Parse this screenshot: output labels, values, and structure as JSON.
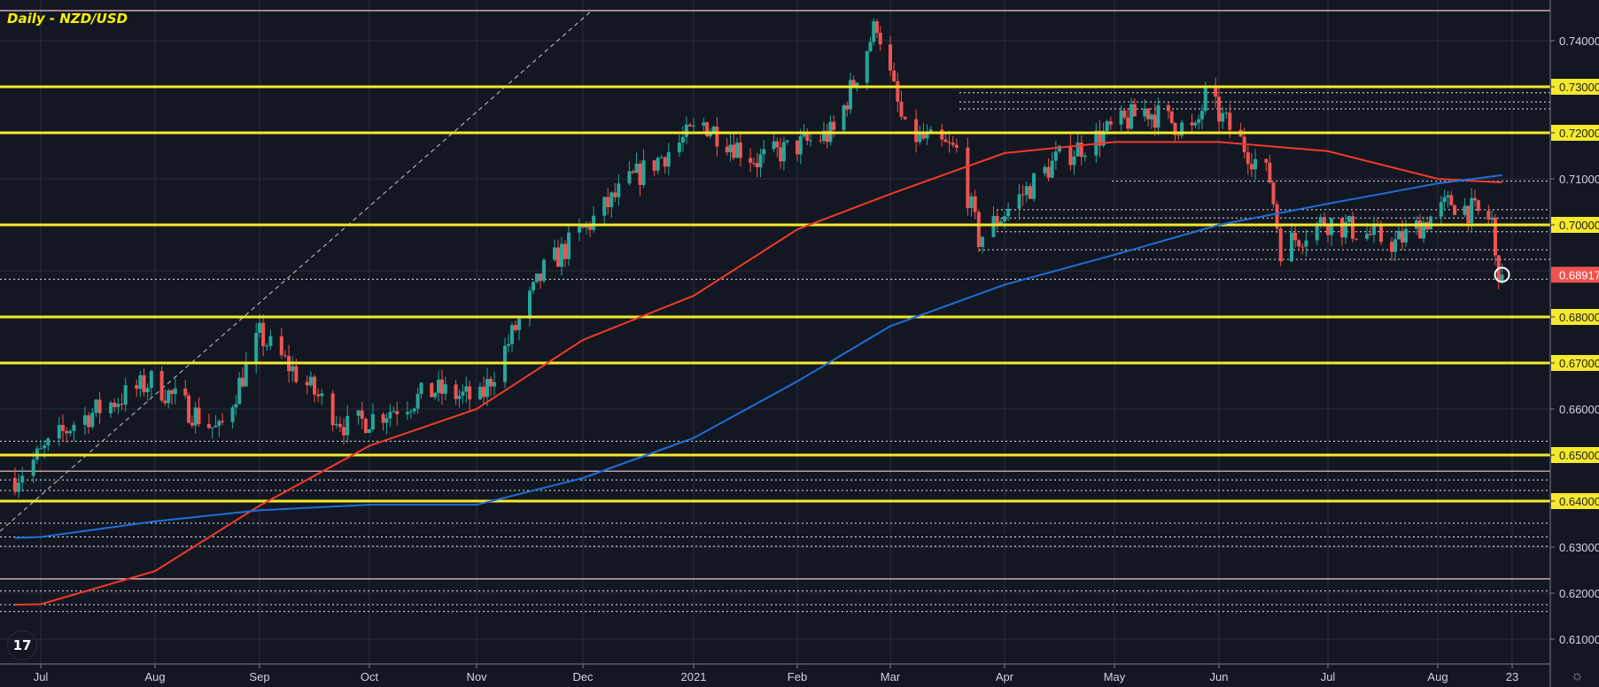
{
  "chart_data": {
    "type": "candlestick",
    "title": "Daily - NZD/USD",
    "ylim": [
      0.6045,
      0.7488
    ],
    "y_ticks": [
      "0.74000",
      "0.73000",
      "0.72000",
      "0.71000",
      "0.70000",
      "0.68000",
      "0.67000",
      "0.66000",
      "0.65000",
      "0.64000",
      "0.63000",
      "0.62000",
      "0.61000"
    ],
    "highlighted_levels": [
      0.73,
      0.72,
      0.7,
      0.68,
      0.67,
      0.65,
      0.64
    ],
    "x_ticks": [
      {
        "label": "Jul",
        "date": "2020-07-01"
      },
      {
        "label": "Aug",
        "date": "2020-08-01"
      },
      {
        "label": "Sep",
        "date": "2020-09-01"
      },
      {
        "label": "Oct",
        "date": "2020-10-01"
      },
      {
        "label": "Nov",
        "date": "2020-11-01"
      },
      {
        "label": "Dec",
        "date": "2020-12-01"
      },
      {
        "label": "2021",
        "date": "2021-01-01"
      },
      {
        "label": "Feb",
        "date": "2021-02-01"
      },
      {
        "label": "Mar",
        "date": "2021-03-01"
      },
      {
        "label": "Apr",
        "date": "2021-04-01"
      },
      {
        "label": "May",
        "date": "2021-05-01"
      },
      {
        "label": "Jun",
        "date": "2021-06-01"
      },
      {
        "label": "Jul",
        "date": "2021-07-01"
      },
      {
        "label": "Aug",
        "date": "2021-08-01"
      },
      {
        "label": "23",
        "date": "2021-08-23"
      }
    ],
    "close_path": [
      [
        "2020-06-24",
        0.645
      ],
      [
        "2020-07-10",
        0.657
      ],
      [
        "2020-07-31",
        0.666
      ],
      [
        "2020-08-20",
        0.655
      ],
      [
        "2020-09-01",
        0.676
      ],
      [
        "2020-09-25",
        0.656
      ],
      [
        "2020-10-20",
        0.664
      ],
      [
        "2020-11-02",
        0.662
      ],
      [
        "2020-11-20",
        0.69
      ],
      [
        "2020-12-15",
        0.71
      ],
      [
        "2021-01-04",
        0.722
      ],
      [
        "2021-01-20",
        0.714
      ],
      [
        "2021-02-12",
        0.72
      ],
      [
        "2021-02-25",
        0.744
      ],
      [
        "2021-03-05",
        0.72
      ],
      [
        "2021-03-19",
        0.716
      ],
      [
        "2021-03-25",
        0.697
      ],
      [
        "2021-04-15",
        0.714
      ],
      [
        "2021-05-10",
        0.725
      ],
      [
        "2021-05-25",
        0.72
      ],
      [
        "2021-05-28",
        0.728
      ],
      [
        "2021-06-15",
        0.71
      ],
      [
        "2021-06-18",
        0.695
      ],
      [
        "2021-06-30",
        0.701
      ],
      [
        "2021-07-20",
        0.696
      ],
      [
        "2021-08-05",
        0.705
      ],
      [
        "2021-08-17",
        0.701
      ],
      [
        "2021-08-18",
        0.692
      ],
      [
        "2021-08-20",
        0.68917
      ]
    ],
    "last_price": "0.68917",
    "series": [
      {
        "name": "MA red",
        "color": "#f23a2a",
        "points": [
          [
            "2020-06-24",
            0.6175
          ],
          [
            "2020-07-01",
            0.6176
          ],
          [
            "2020-08-01",
            0.6248
          ],
          [
            "2020-09-01",
            0.639
          ],
          [
            "2020-10-01",
            0.652
          ],
          [
            "2020-11-01",
            0.66
          ],
          [
            "2020-12-01",
            0.675
          ],
          [
            "2021-01-01",
            0.6846
          ],
          [
            "2021-02-01",
            0.699
          ],
          [
            "2021-03-01",
            0.7067
          ],
          [
            "2021-04-01",
            0.7156
          ],
          [
            "2021-05-01",
            0.718
          ],
          [
            "2021-06-01",
            0.718
          ],
          [
            "2021-07-01",
            0.716
          ],
          [
            "2021-08-01",
            0.71
          ],
          [
            "2021-08-20",
            0.7092
          ]
        ]
      },
      {
        "name": "MA blue",
        "color": "#1e6fd9",
        "points": [
          [
            "2020-06-24",
            0.632
          ],
          [
            "2020-07-01",
            0.6322
          ],
          [
            "2020-08-01",
            0.6356
          ],
          [
            "2020-09-01",
            0.638
          ],
          [
            "2020-10-01",
            0.6392
          ],
          [
            "2020-11-01",
            0.6392
          ],
          [
            "2020-12-01",
            0.645
          ],
          [
            "2021-01-01",
            0.6537
          ],
          [
            "2021-02-01",
            0.666
          ],
          [
            "2021-03-01",
            0.678
          ],
          [
            "2021-04-01",
            0.687
          ],
          [
            "2021-05-01",
            0.6935
          ],
          [
            "2021-06-01",
            0.7
          ],
          [
            "2021-07-01",
            0.7046
          ],
          [
            "2021-08-01",
            0.709
          ],
          [
            "2021-08-20",
            0.7108
          ]
        ]
      }
    ],
    "pink_levels": [
      0.7512,
      0.6465,
      0.6231
    ],
    "dotted_levels": [
      0.7287,
      0.7267,
      0.7252,
      0.7095,
      0.7033,
      0.7015,
      0.6985,
      0.6946,
      0.6925,
      0.6882,
      0.653,
      0.6446,
      0.6423,
      0.6352,
      0.6322,
      0.6302,
      0.6205,
      0.6175,
      0.616
    ],
    "colors": {
      "up": "#26a69a",
      "down": "#ef5350",
      "level": "#f5e92c",
      "background": "#131722",
      "grid": "#2a2e39"
    }
  }
}
